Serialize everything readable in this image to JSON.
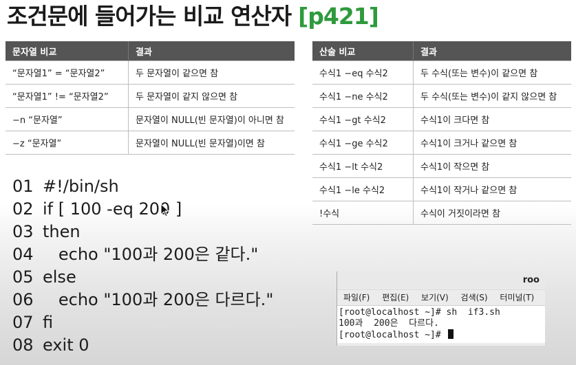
{
  "title": {
    "text": "조건문에 들어가는 비교 연산자",
    "ref": "[p421]"
  },
  "string_table": {
    "headers": [
      "문자열 비교",
      "결과"
    ],
    "rows": [
      [
        "“문자열1” = “문자열2”",
        "두 문자열이 같으면 참"
      ],
      [
        "“문자열1” != “문자열2”",
        "두 문자열이 같지 않으면 참"
      ],
      [
        "−n “문자열”",
        "문자열이 NULL(빈 문자열)이 아니면 참"
      ],
      [
        "−z “문자열”",
        "문자열이 NULL(빈 문자열)이면 참"
      ]
    ]
  },
  "arith_table": {
    "headers": [
      "산술 비교",
      "결과"
    ],
    "rows": [
      [
        "수식1 −eq 수식2",
        "두 수식(또는 변수)이 같으면 참"
      ],
      [
        "수식1 −ne 수식2",
        "두 수식(또는 변수)이 같지 않으면 참"
      ],
      [
        "수식1 −gt 수식2",
        "수식1이 크다면 참"
      ],
      [
        "수식1 −ge 수식2",
        "수식1이 크거나 같으면 참"
      ],
      [
        "수식1 −lt 수식2",
        "수식1이 작으면 참"
      ],
      [
        "수식1 −le 수식2",
        "수식1이 작거나 같으면 참"
      ],
      [
        "!수식",
        "수식이 거짓이라면 참"
      ]
    ]
  },
  "code": [
    {
      "num": "01",
      "text": "#!/bin/sh"
    },
    {
      "num": "02",
      "text": "if [ 100 -eq 200 ]"
    },
    {
      "num": "03",
      "text": "then"
    },
    {
      "num": "04",
      "text": "   echo \"100과 200은 같다.\""
    },
    {
      "num": "05",
      "text": "else"
    },
    {
      "num": "06",
      "text": "   echo \"100과 200은 다르다.\""
    },
    {
      "num": "07",
      "text": "fi"
    },
    {
      "num": "08",
      "text": "exit 0"
    }
  ],
  "terminal": {
    "title": "roo",
    "menu": [
      "파일(F)",
      "편집(E)",
      "보기(V)",
      "검색(S)",
      "터미널(T)"
    ],
    "lines": [
      "[root@localhost ~]# sh  if3.sh",
      "100과  200은  다르다.",
      "[root@localhost ~]# "
    ]
  },
  "icons": {
    "mouse_pointer": "mouse-pointer-icon",
    "terminal_cursor": "block-cursor"
  }
}
